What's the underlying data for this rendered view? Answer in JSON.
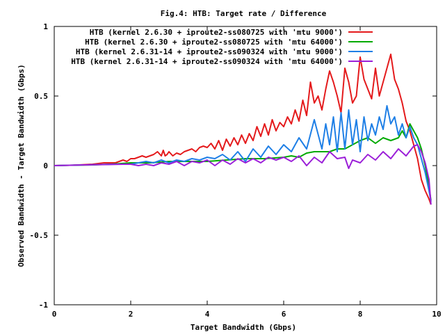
{
  "chart_data": {
    "type": "line",
    "title": "Fig.4: HTB: Target rate / Difference",
    "xlabel": "Target Bandwidth (Gbps)",
    "ylabel": "Observed Bandwidth - Target Bandwidth (Gbps)",
    "xlim": [
      0,
      10
    ],
    "ylim": [
      -1,
      1
    ],
    "xticks": [
      0,
      2,
      4,
      6,
      8,
      10
    ],
    "xtick_labels": [
      "0",
      "2",
      "4",
      "6",
      "8",
      "10"
    ],
    "yticks": [
      -1,
      -0.5,
      0,
      0.5,
      1
    ],
    "ytick_labels": [
      "-1",
      "-0.5",
      "0",
      "0.5",
      "1"
    ],
    "grid": false,
    "legend_position": "top-right",
    "series": [
      {
        "name": "HTB (kernel 2.6.30 + iproute2-ss080725 with 'mtu 9000')",
        "color": "#e41a1c",
        "x": [
          0,
          0.5,
          1.0,
          1.3,
          1.6,
          1.8,
          1.9,
          2.0,
          2.1,
          2.2,
          2.3,
          2.4,
          2.5,
          2.6,
          2.7,
          2.8,
          2.85,
          2.9,
          2.95,
          3.0,
          3.1,
          3.2,
          3.3,
          3.4,
          3.5,
          3.6,
          3.7,
          3.8,
          3.9,
          4.0,
          4.1,
          4.2,
          4.3,
          4.4,
          4.5,
          4.6,
          4.7,
          4.8,
          4.9,
          5.0,
          5.1,
          5.2,
          5.3,
          5.4,
          5.5,
          5.6,
          5.7,
          5.8,
          5.9,
          6.0,
          6.1,
          6.2,
          6.3,
          6.4,
          6.5,
          6.6,
          6.7,
          6.8,
          6.9,
          7.0,
          7.1,
          7.2,
          7.3,
          7.4,
          7.5,
          7.6,
          7.7,
          7.8,
          7.9,
          8.0,
          8.1,
          8.2,
          8.3,
          8.4,
          8.5,
          8.6,
          8.7,
          8.8,
          8.9,
          9.0,
          9.1,
          9.2,
          9.3,
          9.4,
          9.5,
          9.6,
          9.7,
          9.8,
          9.85
        ],
        "y": [
          0,
          0.003,
          0.01,
          0.02,
          0.02,
          0.04,
          0.03,
          0.05,
          0.05,
          0.06,
          0.07,
          0.06,
          0.07,
          0.08,
          0.1,
          0.07,
          0.11,
          0.07,
          0.08,
          0.1,
          0.07,
          0.09,
          0.08,
          0.1,
          0.11,
          0.12,
          0.1,
          0.13,
          0.14,
          0.13,
          0.16,
          0.12,
          0.18,
          0.11,
          0.19,
          0.14,
          0.2,
          0.15,
          0.22,
          0.16,
          0.23,
          0.18,
          0.28,
          0.21,
          0.3,
          0.22,
          0.33,
          0.25,
          0.31,
          0.28,
          0.35,
          0.3,
          0.4,
          0.32,
          0.47,
          0.36,
          0.6,
          0.45,
          0.5,
          0.4,
          0.55,
          0.68,
          0.6,
          0.5,
          0.38,
          0.7,
          0.6,
          0.45,
          0.5,
          0.78,
          0.62,
          0.55,
          0.48,
          0.7,
          0.5,
          0.6,
          0.7,
          0.8,
          0.62,
          0.55,
          0.45,
          0.32,
          0.25,
          0.15,
          0.05,
          -0.1,
          -0.18,
          -0.24,
          -0.28
        ]
      },
      {
        "name": "HTB (kernel 2.6.30 + iproute2-ss080725 with 'mtu 64000')",
        "color": "#00aa00",
        "x": [
          0,
          0.5,
          1.0,
          1.5,
          2.0,
          2.5,
          3.0,
          3.5,
          4.0,
          4.5,
          5.0,
          5.5,
          6.0,
          6.2,
          6.4,
          6.6,
          6.8,
          7.0,
          7.2,
          7.4,
          7.6,
          7.8,
          8.0,
          8.2,
          8.4,
          8.6,
          8.8,
          9.0,
          9.1,
          9.2,
          9.3,
          9.4,
          9.5,
          9.6,
          9.7,
          9.8,
          9.85
        ],
        "y": [
          0,
          0.003,
          0.005,
          0.01,
          0.02,
          0.02,
          0.03,
          0.03,
          0.03,
          0.04,
          0.05,
          0.05,
          0.06,
          0.07,
          0.06,
          0.09,
          0.1,
          0.1,
          0.1,
          0.12,
          0.12,
          0.15,
          0.18,
          0.2,
          0.16,
          0.2,
          0.18,
          0.2,
          0.25,
          0.2,
          0.3,
          0.25,
          0.2,
          0.12,
          0.0,
          -0.15,
          -0.25
        ]
      },
      {
        "name": "HTB (kernel 2.6.31-14 + iproute2-ss090324 with 'mtu 9000')",
        "color": "#1e7fe6",
        "x": [
          0,
          0.5,
          1.0,
          1.5,
          1.8,
          2.0,
          2.2,
          2.4,
          2.6,
          2.8,
          3.0,
          3.2,
          3.4,
          3.6,
          3.8,
          4.0,
          4.2,
          4.4,
          4.6,
          4.8,
          5.0,
          5.2,
          5.4,
          5.6,
          5.8,
          6.0,
          6.2,
          6.4,
          6.6,
          6.8,
          7.0,
          7.1,
          7.2,
          7.3,
          7.4,
          7.5,
          7.6,
          7.7,
          7.8,
          7.9,
          8.0,
          8.1,
          8.2,
          8.3,
          8.4,
          8.5,
          8.6,
          8.7,
          8.8,
          8.9,
          9.0,
          9.1,
          9.2,
          9.3,
          9.4,
          9.5,
          9.6,
          9.7,
          9.8,
          9.85
        ],
        "y": [
          0,
          0.003,
          0.006,
          0.01,
          0.01,
          0.01,
          0.02,
          0.03,
          0.02,
          0.04,
          0.02,
          0.04,
          0.03,
          0.05,
          0.04,
          0.06,
          0.05,
          0.08,
          0.04,
          0.1,
          0.03,
          0.12,
          0.06,
          0.14,
          0.08,
          0.15,
          0.1,
          0.2,
          0.12,
          0.33,
          0.12,
          0.3,
          0.15,
          0.35,
          0.1,
          0.38,
          0.12,
          0.4,
          0.15,
          0.33,
          0.1,
          0.35,
          0.18,
          0.3,
          0.22,
          0.35,
          0.26,
          0.43,
          0.3,
          0.35,
          0.22,
          0.3,
          0.2,
          0.28,
          0.2,
          0.15,
          0.05,
          -0.05,
          -0.18,
          -0.26
        ]
      },
      {
        "name": "HTB (kernel 2.6.31-14 + iproute2-ss090324 with 'mtu 64000')",
        "color": "#9b1fd8",
        "x": [
          0,
          0.5,
          1.0,
          1.5,
          1.8,
          2.0,
          2.2,
          2.4,
          2.6,
          2.8,
          3.0,
          3.2,
          3.4,
          3.6,
          3.8,
          4.0,
          4.2,
          4.4,
          4.6,
          4.8,
          5.0,
          5.2,
          5.4,
          5.6,
          5.8,
          6.0,
          6.2,
          6.4,
          6.6,
          6.8,
          7.0,
          7.2,
          7.4,
          7.6,
          7.7,
          7.8,
          8.0,
          8.2,
          8.4,
          8.6,
          8.8,
          9.0,
          9.2,
          9.4,
          9.5,
          9.6,
          9.7,
          9.8,
          9.85
        ],
        "y": [
          0,
          0.003,
          0.006,
          0.008,
          0.01,
          0.01,
          0.0,
          0.01,
          0.0,
          0.02,
          0.01,
          0.03,
          0.0,
          0.03,
          0.02,
          0.04,
          0.0,
          0.04,
          0.01,
          0.05,
          0.02,
          0.05,
          0.02,
          0.06,
          0.04,
          0.06,
          0.03,
          0.07,
          0.0,
          0.06,
          0.02,
          0.1,
          0.05,
          0.06,
          -0.02,
          0.04,
          0.02,
          0.08,
          0.04,
          0.1,
          0.05,
          0.12,
          0.07,
          0.14,
          0.15,
          0.1,
          0.02,
          -0.1,
          -0.28
        ]
      }
    ]
  }
}
